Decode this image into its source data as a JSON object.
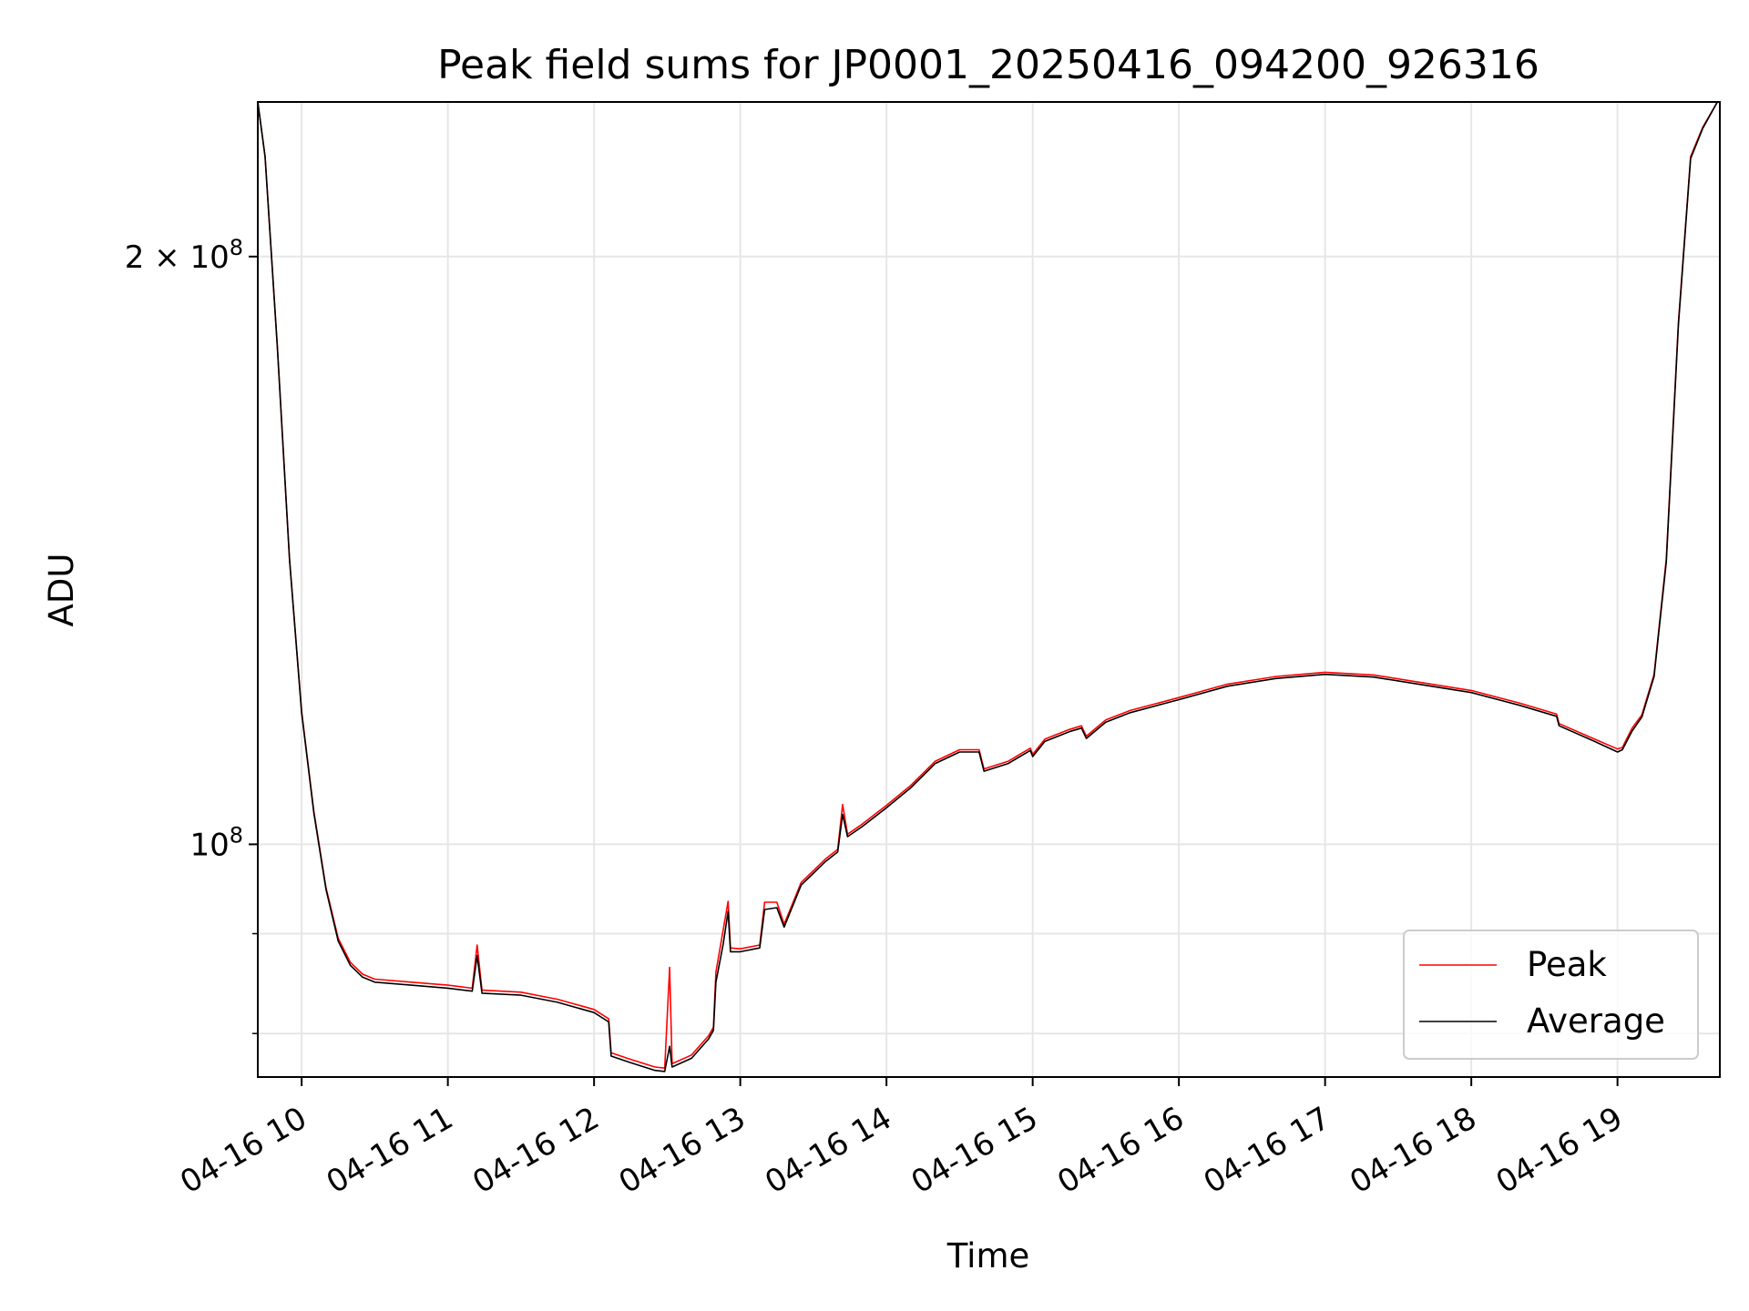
{
  "chart_data": {
    "type": "line",
    "title": "Peak field sums for JP0001_20250416_094200_926316",
    "xlabel": "Time",
    "ylabel": "ADU",
    "x_scale": "time",
    "y_scale": "log",
    "xlim": [
      "2025-04-16T09:42",
      "2025-04-16T19:42"
    ],
    "ylim": [
      76000000,
      240000000
    ],
    "xticks": [
      {
        "value": "2025-04-16T10:00",
        "label": "04-16 10"
      },
      {
        "value": "2025-04-16T11:00",
        "label": "04-16 11"
      },
      {
        "value": "2025-04-16T12:00",
        "label": "04-16 12"
      },
      {
        "value": "2025-04-16T13:00",
        "label": "04-16 13"
      },
      {
        "value": "2025-04-16T14:00",
        "label": "04-16 14"
      },
      {
        "value": "2025-04-16T15:00",
        "label": "04-16 15"
      },
      {
        "value": "2025-04-16T16:00",
        "label": "04-16 16"
      },
      {
        "value": "2025-04-16T17:00",
        "label": "04-16 17"
      },
      {
        "value": "2025-04-16T18:00",
        "label": "04-16 18"
      },
      {
        "value": "2025-04-16T19:00",
        "label": "04-16 19"
      }
    ],
    "yticks_major": [
      {
        "value": 100000000,
        "base": "10",
        "exp": "8",
        "prefix": ""
      },
      {
        "value": 200000000,
        "base": "10",
        "exp": "8",
        "prefix": "2 × "
      }
    ],
    "yticks_minor": [
      80000000,
      90000000
    ],
    "grid": true,
    "legend_position": "lower-right",
    "series": [
      {
        "name": "Peak",
        "color": "#ff0000",
        "points": [
          [
            "2025-04-16T09:42",
            240000000
          ],
          [
            "2025-04-16T09:45",
            225000000
          ],
          [
            "2025-04-16T09:50",
            180000000
          ],
          [
            "2025-04-16T09:55",
            140000000
          ],
          [
            "2025-04-16T10:00",
            117000000
          ],
          [
            "2025-04-16T10:05",
            104000000
          ],
          [
            "2025-04-16T10:10",
            95000000
          ],
          [
            "2025-04-16T10:15",
            89500000
          ],
          [
            "2025-04-16T10:20",
            87000000
          ],
          [
            "2025-04-16T10:25",
            85800000
          ],
          [
            "2025-04-16T10:30",
            85300000
          ],
          [
            "2025-04-16T10:45",
            85000000
          ],
          [
            "2025-04-16T11:00",
            84700000
          ],
          [
            "2025-04-16T11:10",
            84400000
          ],
          [
            "2025-04-16T11:12",
            88800000
          ],
          [
            "2025-04-16T11:14",
            84200000
          ],
          [
            "2025-04-16T11:30",
            84000000
          ],
          [
            "2025-04-16T11:45",
            83300000
          ],
          [
            "2025-04-16T12:00",
            82300000
          ],
          [
            "2025-04-16T12:06",
            81400000
          ],
          [
            "2025-04-16T12:07",
            78200000
          ],
          [
            "2025-04-16T12:15",
            77600000
          ],
          [
            "2025-04-16T12:25",
            76900000
          ],
          [
            "2025-04-16T12:29",
            76800000
          ],
          [
            "2025-04-16T12:31",
            86500000
          ],
          [
            "2025-04-16T12:32",
            77200000
          ],
          [
            "2025-04-16T12:40",
            78000000
          ],
          [
            "2025-04-16T12:47",
            79800000
          ],
          [
            "2025-04-16T12:49",
            80600000
          ],
          [
            "2025-04-16T12:50",
            86000000
          ],
          [
            "2025-04-16T12:53",
            90400000
          ],
          [
            "2025-04-16T12:55",
            93500000
          ],
          [
            "2025-04-16T12:56",
            88500000
          ],
          [
            "2025-04-16T13:00",
            88400000
          ],
          [
            "2025-04-16T13:08",
            88800000
          ],
          [
            "2025-04-16T13:10",
            93400000
          ],
          [
            "2025-04-16T13:15",
            93400000
          ],
          [
            "2025-04-16T13:18",
            91000000
          ],
          [
            "2025-04-16T13:25",
            95600000
          ],
          [
            "2025-04-16T13:35",
            98300000
          ],
          [
            "2025-04-16T13:40",
            99400000
          ],
          [
            "2025-04-16T13:42",
            104800000
          ],
          [
            "2025-04-16T13:44",
            101200000
          ],
          [
            "2025-04-16T13:50",
            102400000
          ],
          [
            "2025-04-16T14:00",
            104700000
          ],
          [
            "2025-04-16T14:10",
            107200000
          ],
          [
            "2025-04-16T14:20",
            110300000
          ],
          [
            "2025-04-16T14:30",
            111800000
          ],
          [
            "2025-04-16T14:38",
            111800000
          ],
          [
            "2025-04-16T14:40",
            109300000
          ],
          [
            "2025-04-16T14:50",
            110300000
          ],
          [
            "2025-04-16T14:59",
            112000000
          ],
          [
            "2025-04-16T15:00",
            111200000
          ],
          [
            "2025-04-16T15:05",
            113200000
          ],
          [
            "2025-04-16T15:15",
            114500000
          ],
          [
            "2025-04-16T15:20",
            115000000
          ],
          [
            "2025-04-16T15:22",
            113600000
          ],
          [
            "2025-04-16T15:30",
            115800000
          ],
          [
            "2025-04-16T15:40",
            117100000
          ],
          [
            "2025-04-16T16:00",
            118900000
          ],
          [
            "2025-04-16T16:20",
            120800000
          ],
          [
            "2025-04-16T16:40",
            121900000
          ],
          [
            "2025-04-16T17:00",
            122500000
          ],
          [
            "2025-04-16T17:20",
            122100000
          ],
          [
            "2025-04-16T17:40",
            121000000
          ],
          [
            "2025-04-16T18:00",
            119900000
          ],
          [
            "2025-04-16T18:20",
            118100000
          ],
          [
            "2025-04-16T18:35",
            116600000
          ],
          [
            "2025-04-16T18:36",
            115300000
          ],
          [
            "2025-04-16T18:50",
            113300000
          ],
          [
            "2025-04-16T19:00",
            111900000
          ],
          [
            "2025-04-16T19:02",
            112100000
          ],
          [
            "2025-04-16T19:06",
            114700000
          ],
          [
            "2025-04-16T19:10",
            116500000
          ],
          [
            "2025-04-16T19:15",
            122200000
          ],
          [
            "2025-04-16T19:20",
            140000000
          ],
          [
            "2025-04-16T19:25",
            185000000
          ],
          [
            "2025-04-16T19:30",
            225000000
          ],
          [
            "2025-04-16T19:35",
            233000000
          ],
          [
            "2025-04-16T19:41",
            240000000
          ]
        ]
      },
      {
        "name": "Average",
        "color": "#000000",
        "points": [
          [
            "2025-04-16T09:42",
            240000000
          ],
          [
            "2025-04-16T09:45",
            225000000
          ],
          [
            "2025-04-16T09:50",
            180000000
          ],
          [
            "2025-04-16T09:55",
            140000000
          ],
          [
            "2025-04-16T10:00",
            116800000
          ],
          [
            "2025-04-16T10:05",
            103800000
          ],
          [
            "2025-04-16T10:10",
            94800000
          ],
          [
            "2025-04-16T10:15",
            89200000
          ],
          [
            "2025-04-16T10:20",
            86700000
          ],
          [
            "2025-04-16T10:25",
            85500000
          ],
          [
            "2025-04-16T10:30",
            85000000
          ],
          [
            "2025-04-16T10:45",
            84700000
          ],
          [
            "2025-04-16T11:00",
            84400000
          ],
          [
            "2025-04-16T11:10",
            84100000
          ],
          [
            "2025-04-16T11:12",
            87700000
          ],
          [
            "2025-04-16T11:14",
            83900000
          ],
          [
            "2025-04-16T11:30",
            83700000
          ],
          [
            "2025-04-16T11:45",
            83000000
          ],
          [
            "2025-04-16T12:00",
            82000000
          ],
          [
            "2025-04-16T12:06",
            81100000
          ],
          [
            "2025-04-16T12:07",
            77900000
          ],
          [
            "2025-04-16T12:15",
            77300000
          ],
          [
            "2025-04-16T12:25",
            76600000
          ],
          [
            "2025-04-16T12:29",
            76500000
          ],
          [
            "2025-04-16T12:31",
            78800000
          ],
          [
            "2025-04-16T12:32",
            76900000
          ],
          [
            "2025-04-16T12:40",
            77700000
          ],
          [
            "2025-04-16T12:47",
            79500000
          ],
          [
            "2025-04-16T12:49",
            80300000
          ],
          [
            "2025-04-16T12:50",
            85000000
          ],
          [
            "2025-04-16T12:53",
            88900000
          ],
          [
            "2025-04-16T12:55",
            92400000
          ],
          [
            "2025-04-16T12:56",
            88100000
          ],
          [
            "2025-04-16T13:00",
            88100000
          ],
          [
            "2025-04-16T13:08",
            88500000
          ],
          [
            "2025-04-16T13:10",
            92600000
          ],
          [
            "2025-04-16T13:15",
            92800000
          ],
          [
            "2025-04-16T13:18",
            90700000
          ],
          [
            "2025-04-16T13:25",
            95300000
          ],
          [
            "2025-04-16T13:35",
            98000000
          ],
          [
            "2025-04-16T13:40",
            99100000
          ],
          [
            "2025-04-16T13:42",
            103600000
          ],
          [
            "2025-04-16T13:44",
            100900000
          ],
          [
            "2025-04-16T13:50",
            102100000
          ],
          [
            "2025-04-16T14:00",
            104400000
          ],
          [
            "2025-04-16T14:10",
            106900000
          ],
          [
            "2025-04-16T14:20",
            110000000
          ],
          [
            "2025-04-16T14:30",
            111500000
          ],
          [
            "2025-04-16T14:38",
            111500000
          ],
          [
            "2025-04-16T14:40",
            109000000
          ],
          [
            "2025-04-16T14:50",
            110000000
          ],
          [
            "2025-04-16T14:59",
            111700000
          ],
          [
            "2025-04-16T15:00",
            110900000
          ],
          [
            "2025-04-16T15:05",
            112900000
          ],
          [
            "2025-04-16T15:15",
            114200000
          ],
          [
            "2025-04-16T15:20",
            114700000
          ],
          [
            "2025-04-16T15:22",
            113300000
          ],
          [
            "2025-04-16T15:30",
            115500000
          ],
          [
            "2025-04-16T15:40",
            116800000
          ],
          [
            "2025-04-16T16:00",
            118600000
          ],
          [
            "2025-04-16T16:20",
            120500000
          ],
          [
            "2025-04-16T16:40",
            121600000
          ],
          [
            "2025-04-16T17:00",
            122200000
          ],
          [
            "2025-04-16T17:20",
            121800000
          ],
          [
            "2025-04-16T17:40",
            120700000
          ],
          [
            "2025-04-16T18:00",
            119600000
          ],
          [
            "2025-04-16T18:20",
            117800000
          ],
          [
            "2025-04-16T18:35",
            116300000
          ],
          [
            "2025-04-16T18:36",
            115000000
          ],
          [
            "2025-04-16T18:50",
            113000000
          ],
          [
            "2025-04-16T19:00",
            111500000
          ],
          [
            "2025-04-16T19:02",
            111800000
          ],
          [
            "2025-04-16T19:06",
            114300000
          ],
          [
            "2025-04-16T19:10",
            116200000
          ],
          [
            "2025-04-16T19:15",
            121900000
          ],
          [
            "2025-04-16T19:20",
            139500000
          ],
          [
            "2025-04-16T19:25",
            184500000
          ],
          [
            "2025-04-16T19:30",
            224500000
          ],
          [
            "2025-04-16T19:35",
            232700000
          ],
          [
            "2025-04-16T19:41",
            240000000
          ]
        ]
      }
    ]
  }
}
